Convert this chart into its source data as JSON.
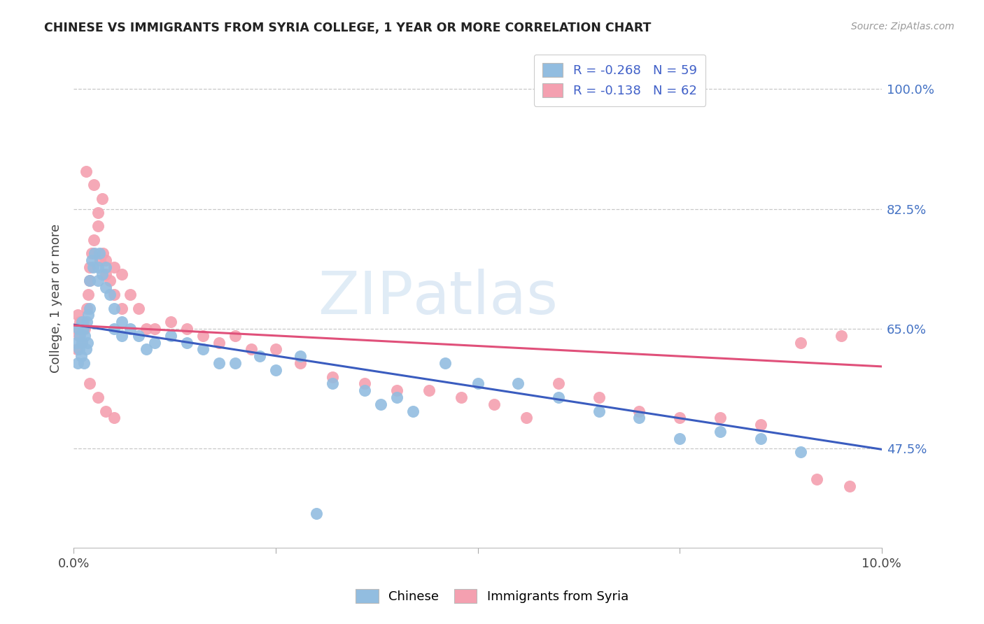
{
  "title": "CHINESE VS IMMIGRANTS FROM SYRIA COLLEGE, 1 YEAR OR MORE CORRELATION CHART",
  "source": "Source: ZipAtlas.com",
  "ylabel": "College, 1 year or more",
  "yticks": [
    "47.5%",
    "65.0%",
    "82.5%",
    "100.0%"
  ],
  "ytick_vals": [
    0.475,
    0.65,
    0.825,
    1.0
  ],
  "xlim": [
    0.0,
    0.1
  ],
  "ylim": [
    0.33,
    1.06
  ],
  "chinese_color": "#92bde0",
  "syria_color": "#f4a0b0",
  "chinese_line_color": "#3a5cbf",
  "syria_line_color": "#e0507a",
  "background_color": "#ffffff",
  "grid_color": "#c8c8c8",
  "watermark_color": "#d8eaf8",
  "chinese_line_x0": 0.0,
  "chinese_line_y0": 0.656,
  "chinese_line_x1": 0.1,
  "chinese_line_y1": 0.474,
  "syria_line_x0": 0.0,
  "syria_line_y0": 0.655,
  "syria_line_x1": 0.1,
  "syria_line_y1": 0.595,
  "legend_labels": [
    "R = -0.268   N = 59",
    "R = -0.138   N = 62"
  ],
  "bottom_labels": [
    "Chinese",
    "Immigrants from Syria"
  ],
  "legend_text_color": "#4060c8",
  "tick_label_color": "#444444",
  "right_tick_color": "#4472c4",
  "chinese_x": [
    0.0003,
    0.0005,
    0.0006,
    0.0007,
    0.0008,
    0.0009,
    0.001,
    0.001,
    0.0012,
    0.0013,
    0.0014,
    0.0015,
    0.0016,
    0.0017,
    0.0018,
    0.002,
    0.002,
    0.0022,
    0.0024,
    0.0026,
    0.003,
    0.003,
    0.0032,
    0.0035,
    0.004,
    0.004,
    0.0045,
    0.005,
    0.005,
    0.006,
    0.006,
    0.007,
    0.008,
    0.009,
    0.01,
    0.012,
    0.014,
    0.016,
    0.018,
    0.02,
    0.023,
    0.025,
    0.028,
    0.032,
    0.036,
    0.038,
    0.042,
    0.046,
    0.05,
    0.055,
    0.06,
    0.065,
    0.07,
    0.075,
    0.08,
    0.085,
    0.09,
    0.04,
    0.03
  ],
  "chinese_y": [
    0.63,
    0.6,
    0.65,
    0.62,
    0.64,
    0.61,
    0.66,
    0.63,
    0.65,
    0.6,
    0.64,
    0.62,
    0.66,
    0.63,
    0.67,
    0.72,
    0.68,
    0.75,
    0.74,
    0.76,
    0.74,
    0.72,
    0.76,
    0.73,
    0.74,
    0.71,
    0.7,
    0.68,
    0.65,
    0.64,
    0.66,
    0.65,
    0.64,
    0.62,
    0.63,
    0.64,
    0.63,
    0.62,
    0.6,
    0.6,
    0.61,
    0.59,
    0.61,
    0.57,
    0.56,
    0.54,
    0.53,
    0.6,
    0.57,
    0.57,
    0.55,
    0.53,
    0.52,
    0.49,
    0.5,
    0.49,
    0.47,
    0.55,
    0.38
  ],
  "syria_x": [
    0.0002,
    0.0004,
    0.0005,
    0.0007,
    0.0008,
    0.001,
    0.001,
    0.0012,
    0.0014,
    0.0016,
    0.0018,
    0.002,
    0.002,
    0.0022,
    0.0025,
    0.003,
    0.003,
    0.0033,
    0.0036,
    0.004,
    0.004,
    0.0045,
    0.005,
    0.005,
    0.006,
    0.006,
    0.007,
    0.008,
    0.009,
    0.01,
    0.012,
    0.014,
    0.016,
    0.018,
    0.02,
    0.022,
    0.025,
    0.028,
    0.032,
    0.036,
    0.04,
    0.044,
    0.048,
    0.052,
    0.056,
    0.06,
    0.065,
    0.07,
    0.075,
    0.08,
    0.085,
    0.09,
    0.095,
    0.0015,
    0.0025,
    0.0035,
    0.002,
    0.003,
    0.004,
    0.005,
    0.096,
    0.092
  ],
  "syria_y": [
    0.65,
    0.62,
    0.67,
    0.64,
    0.66,
    0.65,
    0.63,
    0.66,
    0.65,
    0.68,
    0.7,
    0.74,
    0.72,
    0.76,
    0.78,
    0.8,
    0.82,
    0.75,
    0.76,
    0.75,
    0.73,
    0.72,
    0.74,
    0.7,
    0.73,
    0.68,
    0.7,
    0.68,
    0.65,
    0.65,
    0.66,
    0.65,
    0.64,
    0.63,
    0.64,
    0.62,
    0.62,
    0.6,
    0.58,
    0.57,
    0.56,
    0.56,
    0.55,
    0.54,
    0.52,
    0.57,
    0.55,
    0.53,
    0.52,
    0.52,
    0.51,
    0.63,
    0.64,
    0.88,
    0.86,
    0.84,
    0.57,
    0.55,
    0.53,
    0.52,
    0.42,
    0.43
  ]
}
